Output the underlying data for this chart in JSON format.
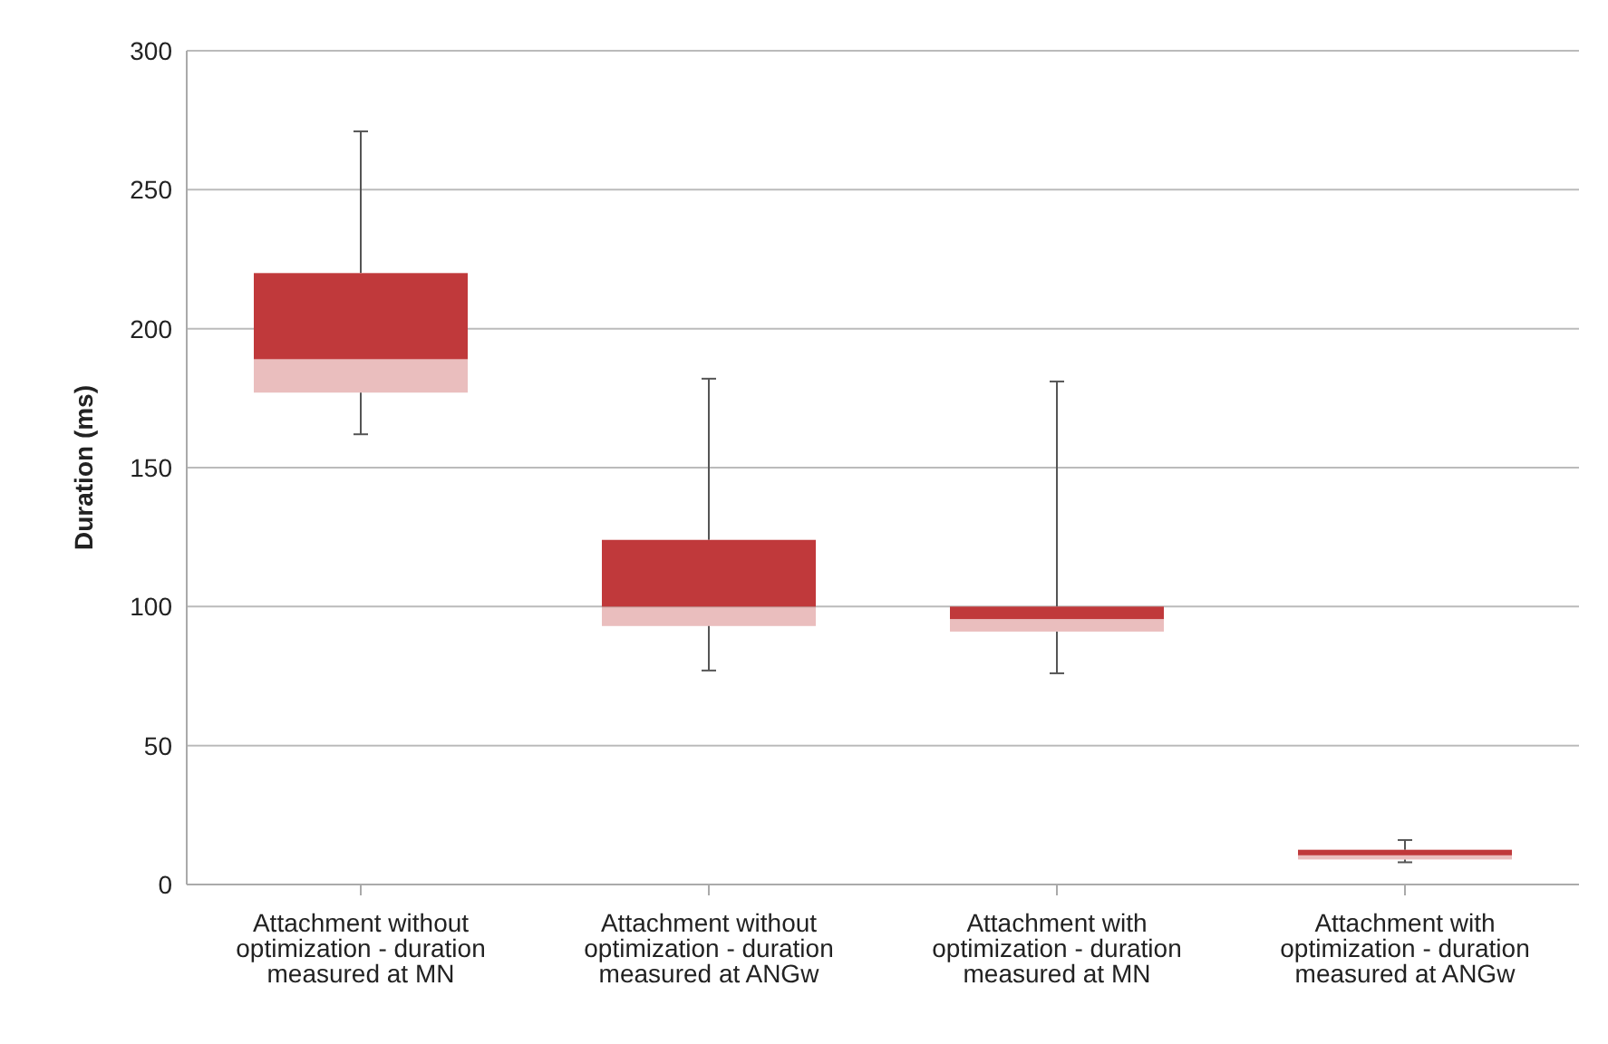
{
  "chart_data": {
    "type": "box",
    "ylabel": "Duration (ms)",
    "categories": [
      "Attachment without optimization - duration measured at MN",
      "Attachment without optimization - duration measured at ANGw",
      "Attachment with optimization - duration measured at MN",
      "Attachment with optimization - duration measured at ANGw"
    ],
    "series": [
      {
        "color": "#c0393b",
        "boxes": [
          {
            "low": 162,
            "q1": 177,
            "median": 189,
            "q3": 220,
            "high": 271
          },
          {
            "low": 77,
            "q1": 93,
            "median": 100,
            "q3": 124,
            "high": 182
          },
          {
            "low": 76,
            "q1": 91,
            "median": 95.5,
            "q3": 100,
            "high": 181
          },
          {
            "low": 8,
            "q1": 9,
            "median": 10.5,
            "q3": 12.5,
            "high": 16
          }
        ]
      }
    ],
    "ylim": [
      0,
      300
    ],
    "yticks": [
      0,
      50,
      100,
      150,
      200,
      250,
      300
    ],
    "grid": "y"
  }
}
